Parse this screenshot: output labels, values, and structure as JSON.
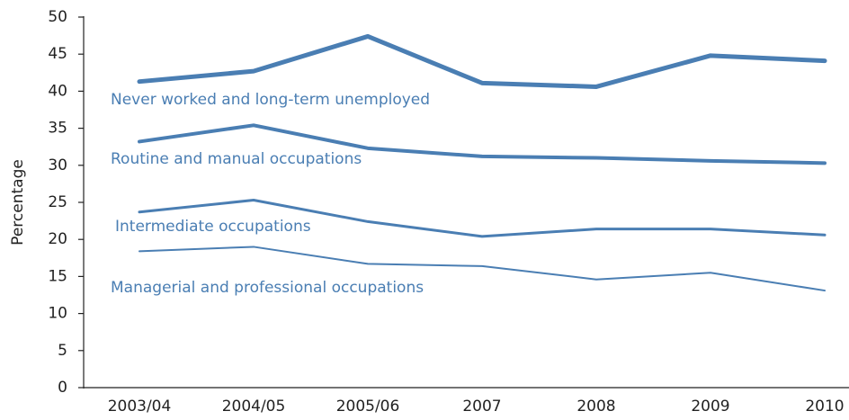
{
  "chart_data": {
    "type": "line",
    "y_label": "Percentage",
    "categories": [
      "2003/04",
      "2004/05",
      "2005/06",
      "2007",
      "2008",
      "2009",
      "2010"
    ],
    "series": [
      {
        "name": "Never worked and long-term unemployed",
        "color": "#4a7eb3",
        "values": [
          41.3,
          42.7,
          47.4,
          41.1,
          40.6,
          44.8,
          44.1
        ]
      },
      {
        "name": "Routine and manual occupations",
        "color": "#4a7eb3",
        "values": [
          33.2,
          35.4,
          32.3,
          31.2,
          31.0,
          30.6,
          30.3
        ]
      },
      {
        "name": "Intermediate occupations",
        "color": "#4a7eb3",
        "values": [
          23.7,
          25.3,
          22.4,
          20.4,
          21.4,
          21.4,
          20.6
        ]
      },
      {
        "name": "Managerial and professional occupations",
        "color": "#4a7eb3",
        "values": [
          18.4,
          19.0,
          16.7,
          16.4,
          14.6,
          15.5,
          13.1
        ]
      }
    ],
    "ylim": [
      0,
      50
    ],
    "yticks": [
      0,
      5,
      10,
      15,
      20,
      25,
      30,
      35,
      40,
      45,
      50
    ],
    "grid": false
  }
}
